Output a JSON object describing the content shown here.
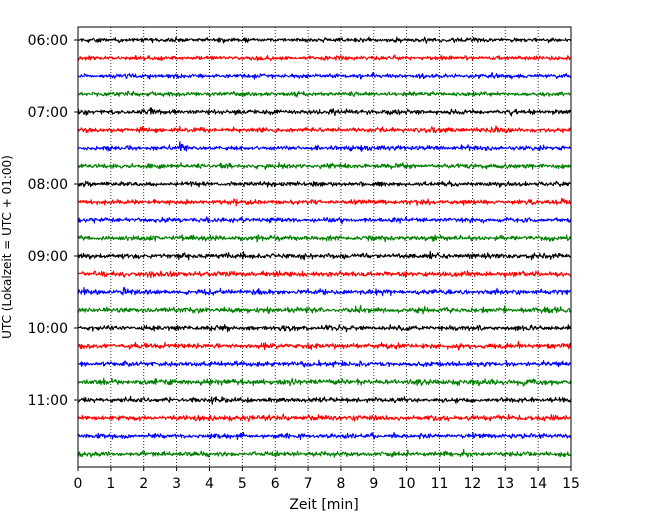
{
  "chart_data": {
    "type": "line",
    "title": "",
    "xlabel": "Zeit  [min]",
    "ylabel": "UTC (Lokalzeit = UTC + 01:00)",
    "xlim": [
      0,
      15
    ],
    "x_ticks": [
      "0",
      "1",
      "2",
      "3",
      "4",
      "5",
      "6",
      "7",
      "8",
      "9",
      "10",
      "11",
      "12",
      "13",
      "14",
      "15"
    ],
    "y_ticks": [
      "06:00",
      "07:00",
      "08:00",
      "09:00",
      "10:00",
      "11:00"
    ],
    "y_tick_rows": [
      0,
      4,
      8,
      12,
      16,
      20
    ],
    "grid": "vertical dotted",
    "row_count": 24,
    "row_interval_minutes": 15,
    "color_cycle": [
      "#000000",
      "#ff0000",
      "#0000ff",
      "#008000"
    ],
    "series": [
      {
        "start": "06:00",
        "amplitude": 0.9,
        "events": []
      },
      {
        "start": "06:15",
        "amplitude": 0.9,
        "events": []
      },
      {
        "start": "06:30",
        "amplitude": 0.9,
        "events": []
      },
      {
        "start": "06:45",
        "amplitude": 0.9,
        "events": []
      },
      {
        "start": "07:00",
        "amplitude": 1.0,
        "events": [
          2.2
        ]
      },
      {
        "start": "07:15",
        "amplitude": 1.0,
        "events": [
          10.7
        ]
      },
      {
        "start": "07:30",
        "amplitude": 1.0,
        "events": [
          3.1
        ]
      },
      {
        "start": "07:45",
        "amplitude": 1.0,
        "events": []
      },
      {
        "start": "08:00",
        "amplitude": 1.0,
        "events": []
      },
      {
        "start": "08:15",
        "amplitude": 1.0,
        "events": [
          14.8
        ]
      },
      {
        "start": "08:30",
        "amplitude": 1.0,
        "events": []
      },
      {
        "start": "08:45",
        "amplitude": 1.1,
        "events": []
      },
      {
        "start": "09:00",
        "amplitude": 1.1,
        "events": []
      },
      {
        "start": "09:15",
        "amplitude": 1.1,
        "events": []
      },
      {
        "start": "09:30",
        "amplitude": 1.1,
        "events": [
          1.4
        ]
      },
      {
        "start": "09:45",
        "amplitude": 1.1,
        "events": [
          5.8
        ]
      },
      {
        "start": "10:00",
        "amplitude": 1.0,
        "events": []
      },
      {
        "start": "10:15",
        "amplitude": 1.1,
        "events": []
      },
      {
        "start": "10:30",
        "amplitude": 1.1,
        "events": []
      },
      {
        "start": "10:45",
        "amplitude": 1.2,
        "events": [
          6.5
        ]
      },
      {
        "start": "11:00",
        "amplitude": 1.0,
        "events": []
      },
      {
        "start": "11:15",
        "amplitude": 1.1,
        "events": [
          6.3
        ]
      },
      {
        "start": "11:30",
        "amplitude": 1.0,
        "events": [
          9.0
        ]
      },
      {
        "start": "11:45",
        "amplitude": 1.0,
        "events": []
      }
    ]
  }
}
